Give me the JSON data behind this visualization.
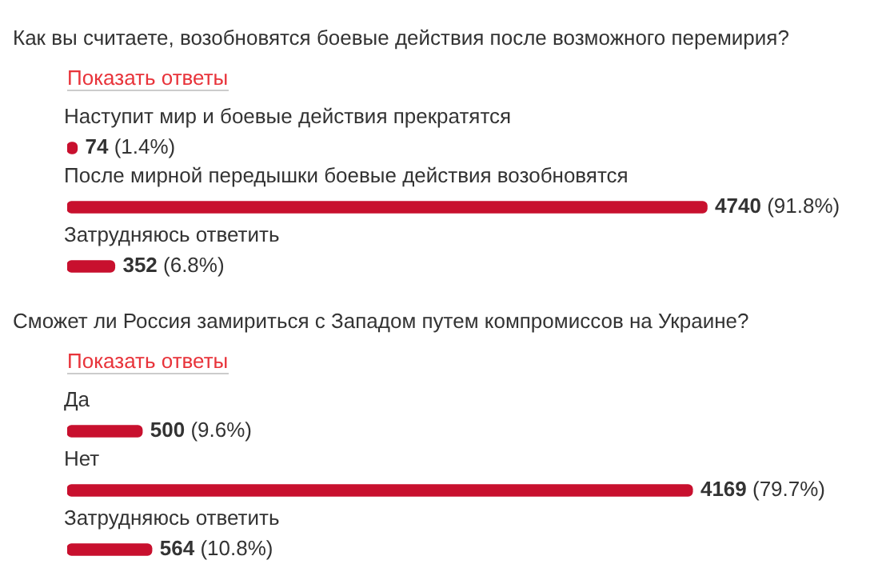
{
  "chart_data": [
    {
      "type": "bar",
      "orientation": "horizontal",
      "title": "Как вы считаете, возобновятся боевые действия после возможного перемирия?",
      "subtitle": "Показать ответы",
      "categories": [
        "Наступит мир и боевые действия прекратятся",
        "После мирной передышки боевые действия возобновятся",
        "Затрудняюсь ответить"
      ],
      "values": [
        74,
        4740,
        352
      ],
      "value_labels": [
        "74 (1.4%)",
        "4740 (91.8%)",
        "352 (6.8%)"
      ],
      "color": "#c8102e"
    },
    {
      "type": "bar",
      "orientation": "horizontal",
      "title": "Сможет ли Россия замириться с Западом путем компромиссов на Украине?",
      "subtitle": "Показать ответы",
      "categories": [
        "Да",
        "Нет",
        "Затрудняюсь ответить"
      ],
      "values": [
        500,
        4169,
        564
      ],
      "value_labels": [
        "500 (9.6%)",
        "4169 (79.7%)",
        "564 (10.8%)"
      ],
      "color": "#c8102e"
    }
  ]
}
